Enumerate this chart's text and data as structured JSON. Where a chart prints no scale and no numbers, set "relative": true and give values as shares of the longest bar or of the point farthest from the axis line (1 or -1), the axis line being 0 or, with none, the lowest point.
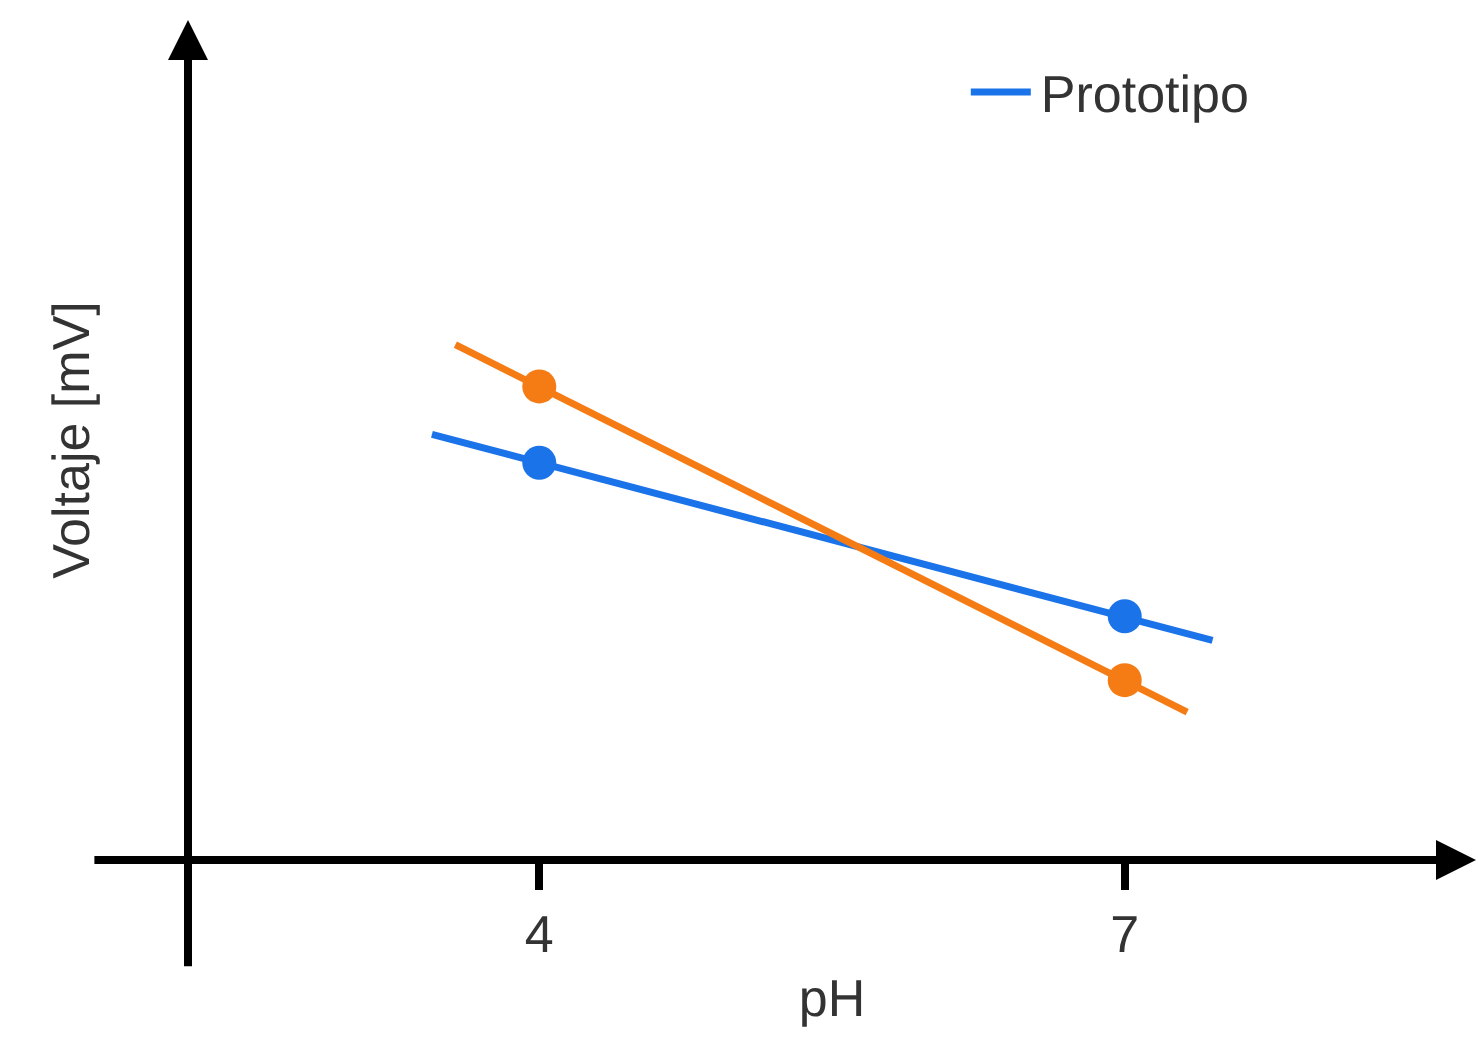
{
  "chart_data": {
    "type": "line",
    "xlabel": "pH",
    "ylabel": "Voltaje [mV]",
    "relative": true,
    "xlim": [
      2.2,
      8.8
    ],
    "xticks": [
      4,
      7
    ],
    "legend": "top right",
    "grid": false,
    "series": [
      {
        "name": "Prototipo",
        "color": "#1a73e8",
        "marker": "none",
        "x": [
          3.45,
          7.45
        ],
        "values": [
          0.826,
          0.426
        ]
      },
      {
        "color": "#f57c14",
        "marker": "none",
        "x": [
          3.57,
          7.32
        ],
        "values": [
          1.0,
          0.287
        ]
      },
      {
        "type": "scatter",
        "marker": "circle",
        "color": "#1a73e8",
        "x": [
          4,
          7
        ],
        "values": [
          0.771,
          0.473
        ]
      },
      {
        "type": "scatter",
        "marker": "circle",
        "color": "#f57c14",
        "x": [
          4,
          7
        ],
        "values": [
          0.919,
          0.349
        ]
      }
    ]
  }
}
